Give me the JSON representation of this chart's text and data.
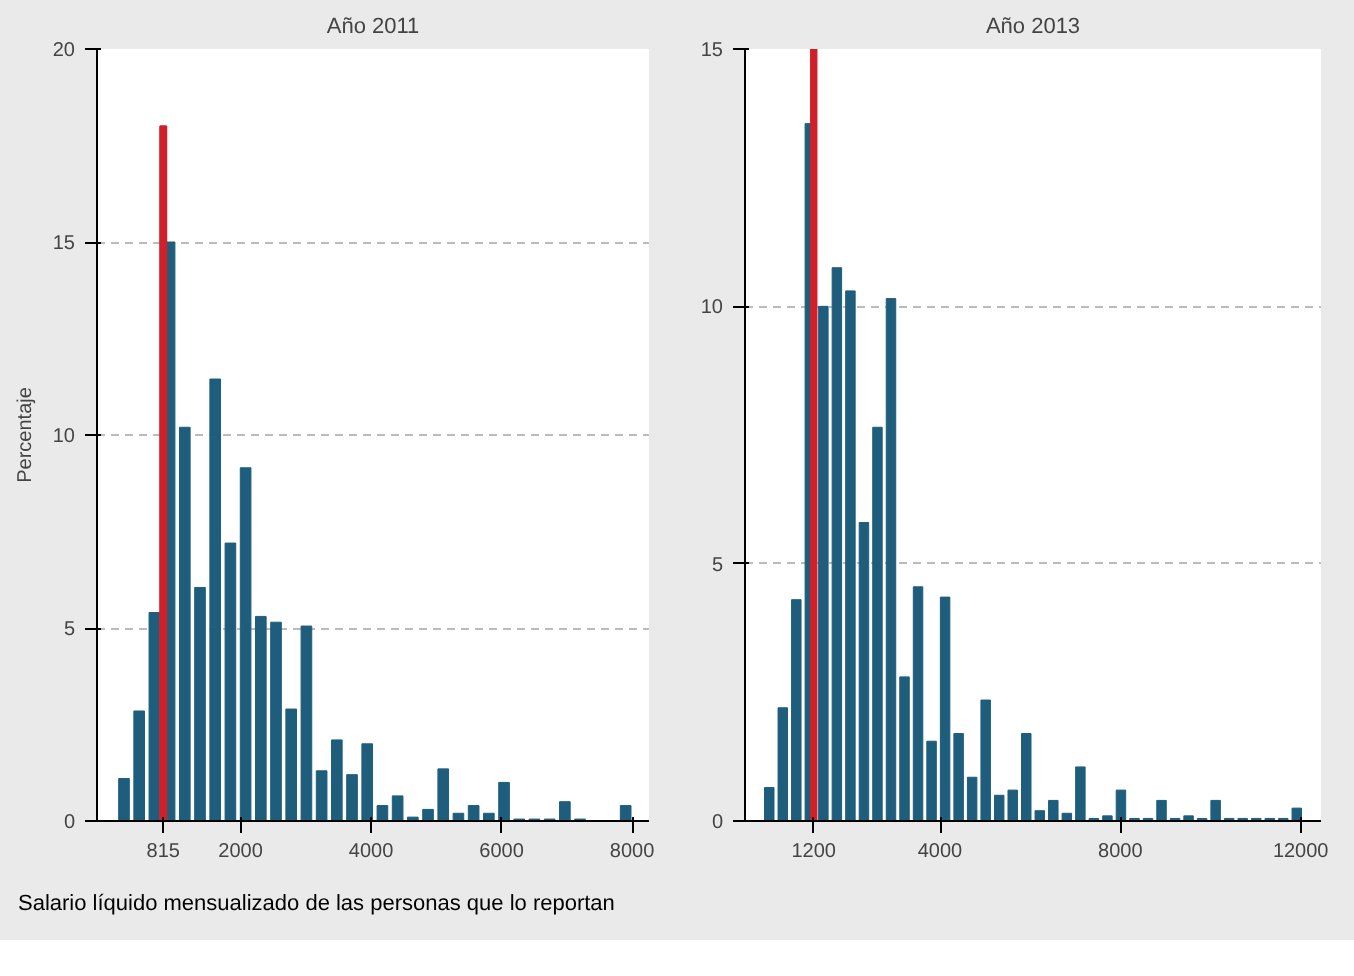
{
  "chart_data": [
    {
      "type": "histogram",
      "title": "Año 2011",
      "ylabel": "Percentaje",
      "bins": [
        97,
        330,
        563,
        796,
        1029,
        1262,
        1495,
        1728,
        1961,
        2194,
        2427,
        2660,
        2893,
        3126,
        3359,
        3592,
        3825,
        4058,
        4291,
        4524,
        4757,
        4990,
        5223,
        5456,
        5689,
        5922,
        6155,
        6388,
        6621,
        6854,
        7087,
        7320,
        7553,
        7786,
        8019
      ],
      "series": [
        {
          "color": "#1f5d7c",
          "values": [
            1.1,
            2.85,
            5.4,
            15.0,
            10.2,
            6.05,
            11.45,
            7.2,
            9.15,
            5.3,
            5.15,
            2.9,
            5.05,
            1.3,
            2.1,
            1.2,
            2.0,
            0.4,
            0.65,
            0.1,
            0.3,
            1.35,
            0.2,
            0.4,
            0.2,
            1.0,
            0.05,
            0.05,
            0.05,
            0.5,
            0.05,
            0,
            0,
            0.4
          ]
        },
        {
          "type": "bar",
          "color": "#d0202a",
          "x": [
            815
          ],
          "values": [
            18.0
          ]
        }
      ],
      "xlim": [
        -200,
        8260
      ],
      "ylim": [
        0,
        20
      ],
      "xticks": [
        815,
        2000,
        4000,
        6000,
        8000
      ],
      "yticks": [
        0,
        5,
        10,
        15,
        20
      ],
      "grid": "y",
      "annotations": [
        "Salario líquido mensualizado de las personas que lo reportan"
      ]
    },
    {
      "type": "histogram",
      "title": "Año 2013",
      "bins": [
        63,
        363,
        663,
        963,
        1263,
        1563,
        1863,
        2163,
        2463,
        2763,
        3063,
        3363,
        3663,
        3963,
        4263,
        4563,
        4863,
        5163,
        5463,
        5763,
        6063,
        6363,
        6663,
        6963,
        7263,
        7563,
        7863,
        8163,
        8463,
        8763,
        9063,
        9363,
        9663,
        9963,
        10263,
        10563,
        10863,
        11163,
        11463,
        11763,
        12063
      ],
      "series": [
        {
          "color": "#1f5d7c",
          "values": [
            0.65,
            2.2,
            4.3,
            13.55,
            10.0,
            10.75,
            10.3,
            5.8,
            7.65,
            10.15,
            2.8,
            4.55,
            1.55,
            4.35,
            1.7,
            0.85,
            2.35,
            0.5,
            0.6,
            1.7,
            0.2,
            0.4,
            0.15,
            1.05,
            0.05,
            0.1,
            0.6,
            0.05,
            0.05,
            0.4,
            0.05,
            0.1,
            0.05,
            0.4,
            0.05,
            0.05,
            0.05,
            0.05,
            0.05,
            0.25
          ]
        },
        {
          "type": "bar",
          "color": "#d0202a",
          "x": [
            1200
          ],
          "values": [
            15.0
          ]
        }
      ],
      "xlim": [
        -325,
        12450
      ],
      "ylim": [
        0,
        15
      ],
      "xticks": [
        1200,
        4000,
        8000,
        12000
      ],
      "yticks": [
        0,
        5,
        10,
        15
      ],
      "grid": "y"
    }
  ]
}
